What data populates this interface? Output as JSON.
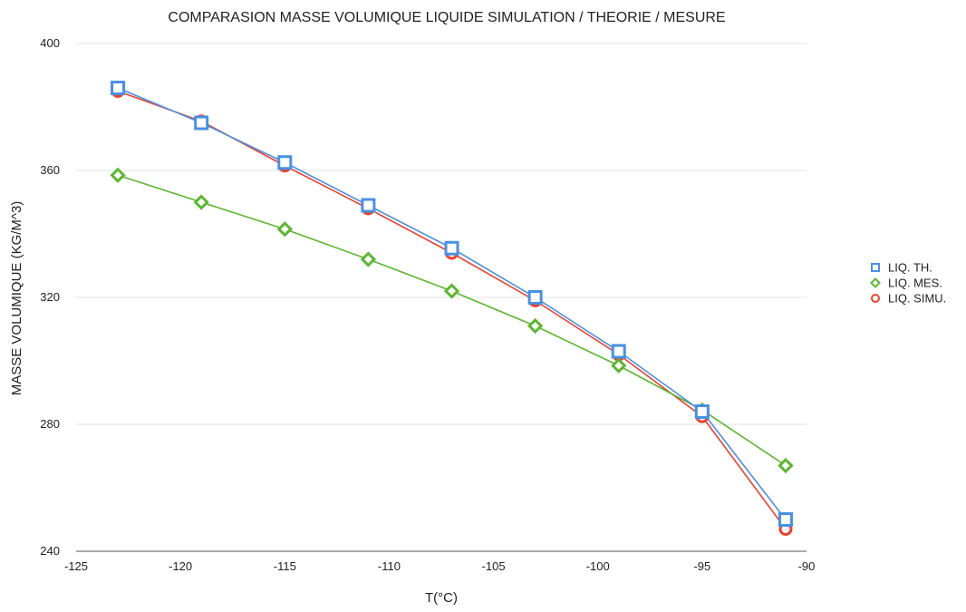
{
  "chart_data": {
    "type": "line",
    "title": "COMPARASION MASSE VOLUMIQUE LIQUIDE SIMULATION / THEORIE / MESURE",
    "xlabel": "T(°C)",
    "ylabel": "MASSE VOLUMIQUE (KG/M^3)",
    "xlim": [
      -125,
      -90
    ],
    "ylim": [
      240,
      400
    ],
    "x_ticks": [
      "-125",
      "-120",
      "-115",
      "-110",
      "-105",
      "-100",
      "-95",
      "-90"
    ],
    "y_ticks": [
      "240",
      "280",
      "320",
      "360",
      "400"
    ],
    "grid": "horizontal",
    "legend_position": "right",
    "x": [
      -123,
      -119,
      -115,
      -111,
      -107,
      -103,
      -99,
      -95,
      -91
    ],
    "series": [
      {
        "name": "LIQ. TH.",
        "color": "#4a90e2",
        "marker": "square",
        "values": [
          386,
          375,
          362.5,
          349,
          335.5,
          320,
          303,
          284,
          250
        ]
      },
      {
        "name": "LIQ. MES.",
        "color": "#5cb531",
        "marker": "diamond",
        "values": [
          358.5,
          350,
          341.5,
          332,
          322,
          311,
          298.5,
          284.5,
          267
        ]
      },
      {
        "name": "LIQ. SIMU.",
        "color": "#e8432f",
        "marker": "circle",
        "values": [
          385,
          375.5,
          361.5,
          348,
          334,
          319,
          302,
          282.5,
          247
        ]
      }
    ]
  }
}
